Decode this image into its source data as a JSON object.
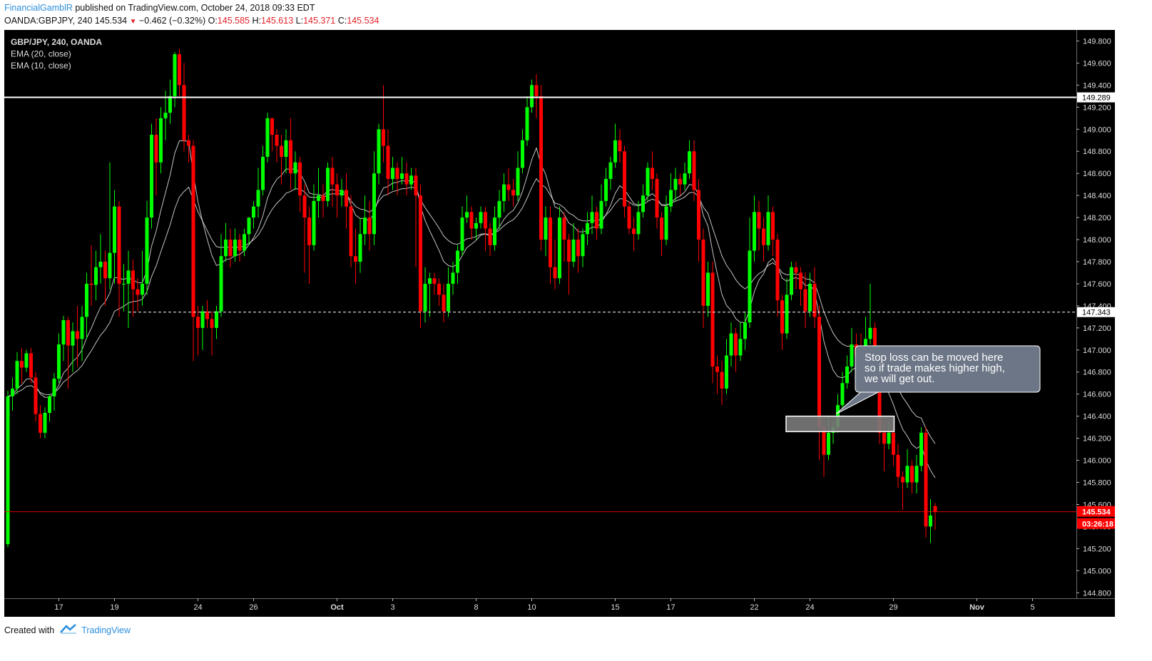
{
  "header": {
    "author": "FinancialGamblR",
    "published_text": "published on TradingView.com, October 24, 2018 09:33 EDT",
    "symbol": "OANDA:GBPJPY, 240",
    "last": "145.534",
    "change": "−0.462 (−0.32%)",
    "open_label": "O:",
    "open": "145.585",
    "high_label": "H:",
    "high": "145.613",
    "low_label": "L:",
    "low": "145.371",
    "close_label": "C:",
    "close": "145.534"
  },
  "footer": {
    "created_with": "Created with",
    "brand": "TradingView"
  },
  "colors": {
    "up": "#00ff00",
    "down": "#ff0000",
    "background": "#000000",
    "ema": "#d8d8d8",
    "accent": "#2d8fdc"
  },
  "chart_data": {
    "type": "candlestick",
    "legend": [
      "GBP/JPY, 240, OANDA",
      "EMA (20, close)",
      "EMA (10, close)"
    ],
    "ylim": [
      144.75,
      149.9
    ],
    "yticks": [
      144.8,
      145.0,
      145.2,
      145.4,
      145.6,
      145.8,
      146.0,
      146.2,
      146.4,
      146.6,
      146.8,
      147.0,
      147.2,
      147.4,
      147.6,
      147.8,
      148.0,
      148.2,
      148.4,
      148.6,
      148.8,
      149.0,
      149.2,
      149.4,
      149.6,
      149.8
    ],
    "ytick_format": "0.000",
    "xticks": [
      {
        "bar": 11,
        "label": "17"
      },
      {
        "bar": 23,
        "label": "19"
      },
      {
        "bar": 41,
        "label": "24"
      },
      {
        "bar": 53,
        "label": "26"
      },
      {
        "bar": 71,
        "label": "Oct",
        "bold": true
      },
      {
        "bar": 83,
        "label": "3"
      },
      {
        "bar": 101,
        "label": "8"
      },
      {
        "bar": 113,
        "label": "10"
      },
      {
        "bar": 131,
        "label": "15"
      },
      {
        "bar": 143,
        "label": "17"
      },
      {
        "bar": 161,
        "label": "22"
      },
      {
        "bar": 173,
        "label": "24"
      },
      {
        "bar": 191,
        "label": "29"
      },
      {
        "bar": 209,
        "label": "Nov",
        "bold": true
      },
      {
        "bar": 221,
        "label": "5"
      }
    ],
    "horizontal_lines": [
      {
        "value": 149.289,
        "label": "149.289",
        "style": "solid"
      },
      {
        "value": 147.343,
        "label": "147.343",
        "style": "dashed",
        "from_bar": 26
      }
    ],
    "last_price": {
      "value": 145.534,
      "label": "145.534",
      "countdown": "03:26:18"
    },
    "annotation": {
      "text": [
        "Stop loss can be moved here",
        "so if trade makes higher high,",
        "we will get out."
      ],
      "zone": {
        "from_bar": 168,
        "to_bar": 191,
        "low": 146.26,
        "high": 146.4
      }
    },
    "candles": [
      [
        145.24,
        146.58,
        145.21,
        146.63
      ],
      [
        146.58,
        146.65,
        146.45,
        146.75
      ],
      [
        146.65,
        146.9,
        146.6,
        146.98
      ],
      [
        146.9,
        146.84,
        146.7,
        147.02
      ],
      [
        146.84,
        146.97,
        146.8,
        147.0
      ],
      [
        146.97,
        146.75,
        146.7,
        147.02
      ],
      [
        146.75,
        146.42,
        146.35,
        146.8
      ],
      [
        146.42,
        146.25,
        146.2,
        146.5
      ],
      [
        146.25,
        146.43,
        146.2,
        146.48
      ],
      [
        146.43,
        146.58,
        146.35,
        146.6
      ],
      [
        146.58,
        146.74,
        146.45,
        146.79
      ],
      [
        146.74,
        147.05,
        146.7,
        147.15
      ],
      [
        147.05,
        147.27,
        146.9,
        147.31
      ],
      [
        147.27,
        147.04,
        146.65,
        147.3
      ],
      [
        147.04,
        147.17,
        146.8,
        147.25
      ],
      [
        147.17,
        147.1,
        146.85,
        147.4
      ],
      [
        147.1,
        147.3,
        146.9,
        147.4
      ],
      [
        147.3,
        147.6,
        147.1,
        147.7
      ],
      [
        147.6,
        147.59,
        147.4,
        147.95
      ],
      [
        147.59,
        147.75,
        147.45,
        147.9
      ],
      [
        147.75,
        147.8,
        147.6,
        148.05
      ],
      [
        147.8,
        147.65,
        147.4,
        147.9
      ],
      [
        147.65,
        147.88,
        147.55,
        148.7
      ],
      [
        147.88,
        148.3,
        147.6,
        148.45
      ],
      [
        148.3,
        147.6,
        147.3,
        148.35
      ],
      [
        147.6,
        147.6,
        147.35,
        147.78
      ],
      [
        147.6,
        147.72,
        147.2,
        147.9
      ],
      [
        147.72,
        147.55,
        147.3,
        147.82
      ],
      [
        147.55,
        147.5,
        147.35,
        147.65
      ],
      [
        147.5,
        147.6,
        147.4,
        147.9
      ],
      [
        147.6,
        148.2,
        147.5,
        148.35
      ],
      [
        148.2,
        148.95,
        148.1,
        149.05
      ],
      [
        148.95,
        148.7,
        148.4,
        149.1
      ],
      [
        148.7,
        149.1,
        148.6,
        149.2
      ],
      [
        149.1,
        149.15,
        148.9,
        149.35
      ],
      [
        149.15,
        149.3,
        149.05,
        149.45
      ],
      [
        149.3,
        149.68,
        149.2,
        149.7
      ],
      [
        149.68,
        149.4,
        149.3,
        149.73
      ],
      [
        149.4,
        148.9,
        148.8,
        149.6
      ],
      [
        148.9,
        148.85,
        148.7,
        148.95
      ],
      [
        148.85,
        147.3,
        146.9,
        148.9
      ],
      [
        147.3,
        147.2,
        146.95,
        147.4
      ],
      [
        147.2,
        147.35,
        147.0,
        147.4
      ],
      [
        147.35,
        147.28,
        147.2,
        147.45
      ],
      [
        147.28,
        147.2,
        146.95,
        147.35
      ],
      [
        147.2,
        147.35,
        147.1,
        147.4
      ],
      [
        147.35,
        147.85,
        147.3,
        148.05
      ],
      [
        147.85,
        148.0,
        147.8,
        148.15
      ],
      [
        148.0,
        147.85,
        147.75,
        148.1
      ],
      [
        147.85,
        148.0,
        147.8,
        148.1
      ],
      [
        148.0,
        147.9,
        147.8,
        148.05
      ],
      [
        147.9,
        148.05,
        147.85,
        148.1
      ],
      [
        148.05,
        148.2,
        147.95,
        148.2
      ],
      [
        148.2,
        148.3,
        148.1,
        148.35
      ],
      [
        148.3,
        148.45,
        148.2,
        148.65
      ],
      [
        148.45,
        148.75,
        148.4,
        148.85
      ],
      [
        148.75,
        149.1,
        148.7,
        149.15
      ],
      [
        149.1,
        148.95,
        148.8,
        149.1
      ],
      [
        148.95,
        148.85,
        148.7,
        149.0
      ],
      [
        148.85,
        148.75,
        148.5,
        148.95
      ],
      [
        148.75,
        148.9,
        148.6,
        149.0
      ],
      [
        148.9,
        148.6,
        148.45,
        149.1
      ],
      [
        148.6,
        148.7,
        148.45,
        148.8
      ],
      [
        148.7,
        148.4,
        148.25,
        148.75
      ],
      [
        148.4,
        148.2,
        147.7,
        148.5
      ],
      [
        148.2,
        147.95,
        147.6,
        148.3
      ],
      [
        147.95,
        148.35,
        147.9,
        148.5
      ],
      [
        148.35,
        148.4,
        148.2,
        148.65
      ],
      [
        148.4,
        148.35,
        148.2,
        148.5
      ],
      [
        148.35,
        148.65,
        148.3,
        148.7
      ],
      [
        148.65,
        148.5,
        148.3,
        148.75
      ],
      [
        148.5,
        148.4,
        148.2,
        148.6
      ],
      [
        148.4,
        148.45,
        148.3,
        148.55
      ],
      [
        148.45,
        148.3,
        148.1,
        148.6
      ],
      [
        148.3,
        147.85,
        147.75,
        148.4
      ],
      [
        147.85,
        147.8,
        147.6,
        148.1
      ],
      [
        147.8,
        148.05,
        147.7,
        148.2
      ],
      [
        148.05,
        148.2,
        147.95,
        148.4
      ],
      [
        148.2,
        148.05,
        147.9,
        148.35
      ],
      [
        148.05,
        148.6,
        147.95,
        148.8
      ],
      [
        148.6,
        149.0,
        148.5,
        149.05
      ],
      [
        149.0,
        148.85,
        148.7,
        149.4
      ],
      [
        148.85,
        148.55,
        148.4,
        149.0
      ],
      [
        148.55,
        148.65,
        148.45,
        148.75
      ],
      [
        148.65,
        148.55,
        148.4,
        148.7
      ],
      [
        148.55,
        148.6,
        148.5,
        148.75
      ],
      [
        148.6,
        148.5,
        148.4,
        148.7
      ],
      [
        148.5,
        148.58,
        148.45,
        148.65
      ],
      [
        148.58,
        148.4,
        147.75,
        148.65
      ],
      [
        148.4,
        147.35,
        147.2,
        148.5
      ],
      [
        147.35,
        147.6,
        147.25,
        147.75
      ],
      [
        147.6,
        147.65,
        147.3,
        147.7
      ],
      [
        147.65,
        147.6,
        147.5,
        147.7
      ],
      [
        147.6,
        147.5,
        147.4,
        147.65
      ],
      [
        147.5,
        147.35,
        147.25,
        147.6
      ],
      [
        147.35,
        147.6,
        147.3,
        147.75
      ],
      [
        147.6,
        147.7,
        147.5,
        147.8
      ],
      [
        147.7,
        147.9,
        147.6,
        147.95
      ],
      [
        147.9,
        148.2,
        147.85,
        148.3
      ],
      [
        148.2,
        148.25,
        148.15,
        148.4
      ],
      [
        148.25,
        148.1,
        148.0,
        148.3
      ],
      [
        148.1,
        148.15,
        148.0,
        148.2
      ],
      [
        148.15,
        148.25,
        148.1,
        148.3
      ],
      [
        148.25,
        148.1,
        147.9,
        148.3
      ],
      [
        148.1,
        147.95,
        147.85,
        148.15
      ],
      [
        147.95,
        148.2,
        147.9,
        148.3
      ],
      [
        148.2,
        148.35,
        148.1,
        148.45
      ],
      [
        148.35,
        148.5,
        148.25,
        148.6
      ],
      [
        148.5,
        148.45,
        148.35,
        148.65
      ],
      [
        148.45,
        148.4,
        148.3,
        148.55
      ],
      [
        148.4,
        148.65,
        148.35,
        148.8
      ],
      [
        148.65,
        148.9,
        148.6,
        149.0
      ],
      [
        148.9,
        149.2,
        148.85,
        149.3
      ],
      [
        149.2,
        149.4,
        149.15,
        149.45
      ],
      [
        149.4,
        149.3,
        149.1,
        149.5
      ],
      [
        149.3,
        148.0,
        147.9,
        149.4
      ],
      [
        148.0,
        148.2,
        147.85,
        148.3
      ],
      [
        148.2,
        147.75,
        147.6,
        148.3
      ],
      [
        147.75,
        147.65,
        147.55,
        148.0
      ],
      [
        147.65,
        148.2,
        147.6,
        148.3
      ],
      [
        148.2,
        148.0,
        147.8,
        148.25
      ],
      [
        148.0,
        147.8,
        147.5,
        148.05
      ],
      [
        147.8,
        148.0,
        147.75,
        148.15
      ],
      [
        148.0,
        147.85,
        147.7,
        148.1
      ],
      [
        147.85,
        148.05,
        147.75,
        148.1
      ],
      [
        148.05,
        148.15,
        147.95,
        148.25
      ],
      [
        148.15,
        148.25,
        148.05,
        148.4
      ],
      [
        148.25,
        148.1,
        148.0,
        148.3
      ],
      [
        148.1,
        148.35,
        148.05,
        148.5
      ],
      [
        148.35,
        148.55,
        148.3,
        148.65
      ],
      [
        148.55,
        148.7,
        148.45,
        148.75
      ],
      [
        148.7,
        148.9,
        148.65,
        149.05
      ],
      [
        148.9,
        148.8,
        148.7,
        149.0
      ],
      [
        148.8,
        148.3,
        148.2,
        148.85
      ],
      [
        148.3,
        148.1,
        148.05,
        148.35
      ],
      [
        148.1,
        148.05,
        147.9,
        148.2
      ],
      [
        148.05,
        148.25,
        148.0,
        148.35
      ],
      [
        148.25,
        148.4,
        148.2,
        148.5
      ],
      [
        148.4,
        148.65,
        148.35,
        148.7
      ],
      [
        148.65,
        148.55,
        148.45,
        148.8
      ],
      [
        148.55,
        148.2,
        148.1,
        148.6
      ],
      [
        148.2,
        148.0,
        147.85,
        148.25
      ],
      [
        148.0,
        148.3,
        147.95,
        148.4
      ],
      [
        148.3,
        148.45,
        148.25,
        148.6
      ],
      [
        148.45,
        148.55,
        148.35,
        148.65
      ],
      [
        148.55,
        148.5,
        148.4,
        148.6
      ],
      [
        148.5,
        148.6,
        148.45,
        148.7
      ],
      [
        148.6,
        148.8,
        148.55,
        148.9
      ],
      [
        148.8,
        148.45,
        148.35,
        148.9
      ],
      [
        148.45,
        148.0,
        147.8,
        148.55
      ],
      [
        148.0,
        147.4,
        147.2,
        148.1
      ],
      [
        147.4,
        147.7,
        147.3,
        147.8
      ],
      [
        147.7,
        146.85,
        146.7,
        147.8
      ],
      [
        146.85,
        146.8,
        146.6,
        146.95
      ],
      [
        146.8,
        146.65,
        146.5,
        146.9
      ],
      [
        146.65,
        146.95,
        146.6,
        147.1
      ],
      [
        146.95,
        147.15,
        146.85,
        147.25
      ],
      [
        147.15,
        146.95,
        146.8,
        147.2
      ],
      [
        146.95,
        147.1,
        146.9,
        147.25
      ],
      [
        147.1,
        147.25,
        147.0,
        147.35
      ],
      [
        147.25,
        147.9,
        147.2,
        148.2
      ],
      [
        147.9,
        148.25,
        147.8,
        148.4
      ],
      [
        148.25,
        148.1,
        147.9,
        148.35
      ],
      [
        148.1,
        147.95,
        147.8,
        148.2
      ],
      [
        147.95,
        148.25,
        147.9,
        148.4
      ],
      [
        148.25,
        148.0,
        147.85,
        148.3
      ],
      [
        148.0,
        147.45,
        147.3,
        148.05
      ],
      [
        147.45,
        147.15,
        147.0,
        147.5
      ],
      [
        147.15,
        147.5,
        147.1,
        147.65
      ],
      [
        147.5,
        147.75,
        147.45,
        147.8
      ],
      [
        147.75,
        147.7,
        147.55,
        147.8
      ],
      [
        147.7,
        147.55,
        147.4,
        147.75
      ],
      [
        147.55,
        147.35,
        147.2,
        147.7
      ],
      [
        147.35,
        147.6,
        147.3,
        147.7
      ],
      [
        147.6,
        147.3,
        147.2,
        147.75
      ],
      [
        147.3,
        146.3,
        146.0,
        147.4
      ],
      [
        146.3,
        146.05,
        145.85,
        146.35
      ],
      [
        146.05,
        146.25,
        146.0,
        146.4
      ],
      [
        146.25,
        146.3,
        146.15,
        146.35
      ],
      [
        146.3,
        146.5,
        146.25,
        146.6
      ],
      [
        146.5,
        146.7,
        146.45,
        146.8
      ],
      [
        146.7,
        146.85,
        146.65,
        146.95
      ],
      [
        146.85,
        147.05,
        146.8,
        147.2
      ],
      [
        147.05,
        146.95,
        146.8,
        147.15
      ],
      [
        146.95,
        146.75,
        146.65,
        147.15
      ],
      [
        146.75,
        147.1,
        146.7,
        147.3
      ],
      [
        147.1,
        147.2,
        147.05,
        147.6
      ],
      [
        147.2,
        146.9,
        146.75,
        147.25
      ],
      [
        146.9,
        146.25,
        146.15,
        147.0
      ],
      [
        146.25,
        146.15,
        145.9,
        146.35
      ],
      [
        146.15,
        146.25,
        146.1,
        146.35
      ],
      [
        146.25,
        146.05,
        145.95,
        146.3
      ],
      [
        146.05,
        145.85,
        145.75,
        146.15
      ],
      [
        145.85,
        145.8,
        145.55,
        145.9
      ],
      [
        145.8,
        145.95,
        145.75,
        146.1
      ],
      [
        145.95,
        145.8,
        145.7,
        146.0
      ],
      [
        145.8,
        145.95,
        145.7,
        146.05
      ],
      [
        145.95,
        146.25,
        145.9,
        146.3
      ],
      [
        146.25,
        145.4,
        145.3,
        146.3
      ],
      [
        145.4,
        145.5,
        145.25,
        145.65
      ],
      [
        145.585,
        145.534,
        145.371,
        145.613
      ]
    ]
  }
}
